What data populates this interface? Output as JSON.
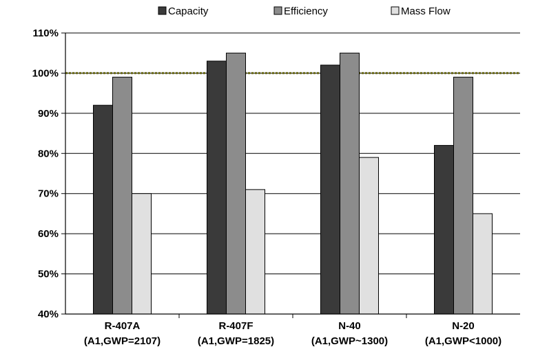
{
  "chart_data": {
    "type": "bar",
    "categories": [
      [
        "R-407A",
        "(A1,GWP=2107)"
      ],
      [
        "R-407F",
        "(A1,GWP=1825)"
      ],
      [
        "N-40",
        "(A1,GWP~1300)"
      ],
      [
        "N-20",
        "(A1,GWP<1000)"
      ]
    ],
    "series": [
      {
        "name": "Capacity",
        "values": [
          92,
          103,
          102,
          82
        ],
        "color": "#3a3a3a"
      },
      {
        "name": "Efficiency",
        "values": [
          99,
          105,
          105,
          99
        ],
        "color": "#8c8c8c"
      },
      {
        "name": "Mass Flow",
        "values": [
          70,
          71,
          79,
          65
        ],
        "color": "#e0e0e0"
      }
    ],
    "y_ticks": [
      "40%",
      "50%",
      "60%",
      "70%",
      "80%",
      "90%",
      "100%",
      "110%"
    ],
    "ylim": [
      40,
      110
    ],
    "reference_line": {
      "value": 100,
      "color": "#6b6b1a",
      "style": "dotted"
    },
    "grid": true,
    "legend_position": "top"
  }
}
